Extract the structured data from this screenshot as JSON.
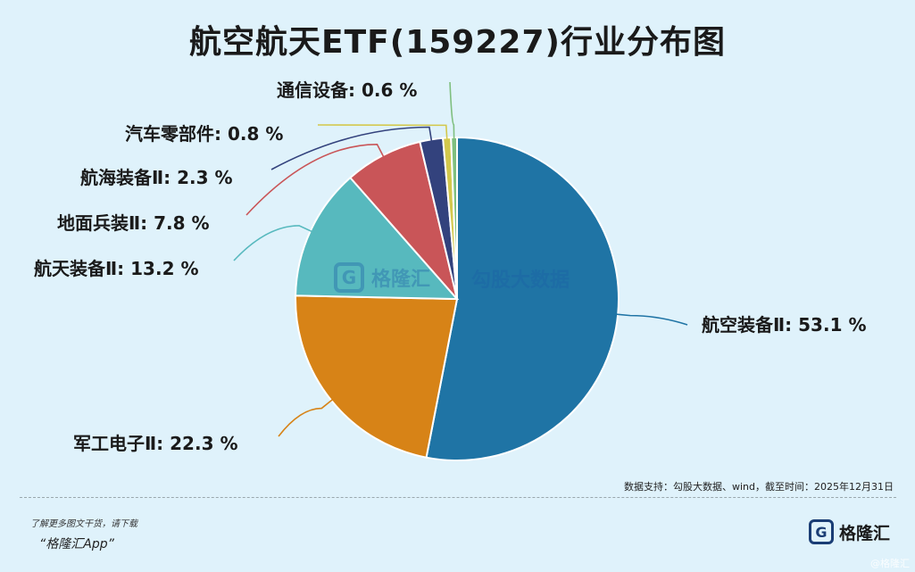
{
  "title": "航空航天ETF(159227)行业分布图",
  "chart_data": {
    "type": "pie",
    "title": "航空航天ETF(159227)行业分布图",
    "slices": [
      {
        "name": "航空装备Ⅱ",
        "value": 53.1,
        "label": "航空装备Ⅱ: 53.1 %",
        "color": "#1f74a5"
      },
      {
        "name": "军工电子Ⅱ",
        "value": 22.3,
        "label": "军工电子Ⅱ: 22.3 %",
        "color": "#d78317"
      },
      {
        "name": "航天装备Ⅱ",
        "value": 13.2,
        "label": "航天装备Ⅱ: 13.2 %",
        "color": "#57b9be"
      },
      {
        "name": "地面兵装Ⅱ",
        "value": 7.8,
        "label": "地面兵装Ⅱ: 7.8 %",
        "color": "#c95558"
      },
      {
        "name": "航海装备Ⅱ",
        "value": 2.3,
        "label": "航海装备Ⅱ: 2.3 %",
        "color": "#33427d"
      },
      {
        "name": "汽车零部件",
        "value": 0.8,
        "label": "汽车零部件: 0.8 %",
        "color": "#d3c84c"
      },
      {
        "name": "通信设备",
        "value": 0.6,
        "label": "通信设备: 0.6 %",
        "color": "#7fbf7f"
      }
    ]
  },
  "source": "数据支持：勾股大数据、wind，截至时间：2025年12月31日",
  "watermark": {
    "brand": "格隆汇",
    "secondary": "勾股大数据"
  },
  "footer": {
    "line1": "了解更多图文干货，请下载",
    "line2": "“格隆汇App”",
    "brand": "格隆汇",
    "corner": "@格隆汇"
  }
}
